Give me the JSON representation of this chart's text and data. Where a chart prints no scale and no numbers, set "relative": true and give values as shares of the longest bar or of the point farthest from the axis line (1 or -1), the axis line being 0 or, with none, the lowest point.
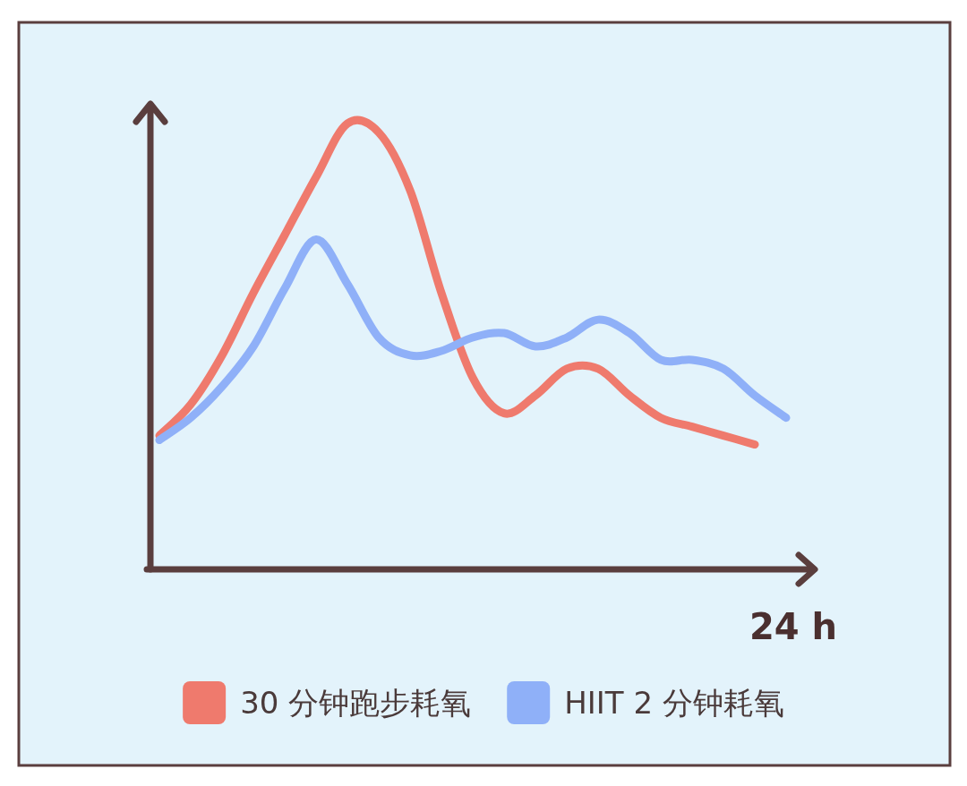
{
  "chart_data": {
    "type": "line",
    "relative": true,
    "xlabel": "24 h",
    "legend": "bottom",
    "categories": [
      null,
      null,
      null,
      null,
      null,
      null,
      null,
      null,
      null,
      null,
      null,
      null,
      null,
      null,
      null,
      null,
      null,
      null,
      null,
      null,
      null
    ],
    "series": [
      {
        "name": "30 分钟跑步耗氧",
        "color": "#ef7a6d",
        "values": [
          0.3,
          0.37,
          0.48,
          0.62,
          0.75,
          0.88,
          1.0,
          0.98,
          0.85,
          0.62,
          0.43,
          0.35,
          0.39,
          0.45,
          0.45,
          0.39,
          0.34,
          0.32,
          0.3,
          0.28,
          null
        ]
      },
      {
        "name": "HIIT 2 分钟耗氧",
        "color": "#8fb0f8",
        "values": [
          0.29,
          0.34,
          0.41,
          0.5,
          0.63,
          0.74,
          0.64,
          0.52,
          0.48,
          0.49,
          0.52,
          0.53,
          0.5,
          0.52,
          0.56,
          0.53,
          0.47,
          0.47,
          0.45,
          0.39,
          0.34
        ]
      }
    ]
  }
}
